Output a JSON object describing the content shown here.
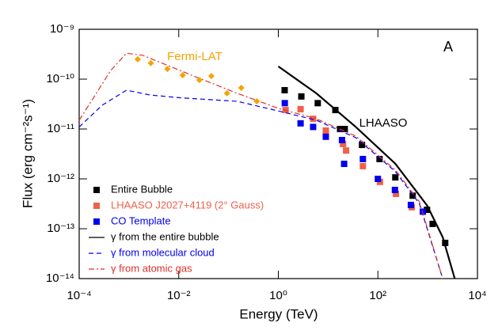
{
  "chart_data": {
    "type": "scatter",
    "x_label": "Energy (TeV)",
    "y_label": "Flux (erg cm⁻²s⁻¹)",
    "log_x": true,
    "log_y": true,
    "xlim": [
      0.0001,
      10000
    ],
    "ylim": [
      1e-14,
      1e-09
    ],
    "xticks": [
      {
        "value": 0.0001,
        "label": "10⁻⁴"
      },
      {
        "value": 0.01,
        "label": "10⁻²"
      },
      {
        "value": 1,
        "label": "10⁰"
      },
      {
        "value": 100,
        "label": "10²"
      },
      {
        "value": 10000,
        "label": "10⁴"
      }
    ],
    "yticks": [
      {
        "value": 1e-14,
        "label": "10⁻¹⁴"
      },
      {
        "value": 1e-13,
        "label": "10⁻¹³"
      },
      {
        "value": 1e-12,
        "label": "10⁻¹²"
      },
      {
        "value": 1e-11,
        "label": "10⁻¹¹"
      },
      {
        "value": 1e-10,
        "label": "10⁻¹⁰"
      },
      {
        "value": 1e-09,
        "label": "10⁻⁹"
      }
    ],
    "annotations": [
      {
        "text": "Fermi-LAT",
        "color": "#f5a300"
      },
      {
        "text": "LHAASO",
        "color": "#000000"
      },
      {
        "text": "A",
        "color": "#000000"
      }
    ],
    "series": [
      {
        "name": "Entire Bubble",
        "color": "#000000",
        "marker": "square",
        "x": [
          1.34,
          2.9,
          6.2,
          14,
          17.4,
          21.6,
          48,
          108,
          224,
          500,
          970,
          1260,
          2250
        ],
        "values": [
          6e-11,
          4.5e-11,
          3.3e-11,
          2.4e-11,
          1e-11,
          1e-11,
          4.8e-12,
          2.5e-12,
          1.07e-12,
          4.6e-13,
          2.4e-13,
          1.25e-13,
          5.2e-14
        ]
      },
      {
        "name": "LHAASO J2027+4119 (2° Gauss)",
        "color": "#f0604a",
        "marker": "square",
        "x": [
          1.4,
          2.8,
          5,
          9,
          20,
          23,
          50,
          110,
          230,
          480
        ],
        "values": [
          2.4e-11,
          2.5e-11,
          1.6e-11,
          9.3e-12,
          5e-12,
          3.7e-12,
          1.8e-12,
          8.7e-13,
          5e-13,
          2.7e-13
        ]
      },
      {
        "name": "CO Template",
        "color": "#0000ee",
        "marker": "square",
        "x": [
          1.35,
          2.8,
          5,
          9,
          19,
          21,
          50,
          100,
          220,
          460,
          800
        ],
        "values": [
          3.3e-11,
          1.3e-11,
          1.1e-11,
          7e-12,
          6e-12,
          2e-12,
          2.5e-12,
          1e-12,
          6e-13,
          3e-13,
          2.2e-13
        ]
      },
      {
        "name": "γ from the entire bubble",
        "color": "#000000",
        "line": "solid",
        "x": [
          1,
          5.8,
          36,
          225,
          980,
          2000,
          3500
        ],
        "values": [
          1.8e-10,
          5.2e-11,
          1.1e-11,
          2e-12,
          2.9e-13,
          6.8e-14,
          1e-14
        ]
      },
      {
        "name": "γ from molecular cloud",
        "color": "#0000ee",
        "line": "dashed",
        "x": [
          0.0001,
          0.00029,
          0.00089,
          0.0027,
          0.0115,
          0.15,
          1,
          5.8,
          36,
          225,
          680,
          2000
        ],
        "values": [
          1.1e-11,
          3e-11,
          6e-11,
          4.8e-11,
          4.2e-11,
          3.6e-11,
          2.3e-11,
          1.5e-11,
          6.7e-12,
          1.4e-12,
          3.2e-13,
          1e-14
        ]
      },
      {
        "name": "γ from atomic gas",
        "color": "#e0302a",
        "line": "dashdot",
        "x": [
          0.0001,
          0.00021,
          0.00042,
          0.00089,
          0.0019,
          0.024,
          0.15,
          1,
          5.8,
          36,
          225,
          680,
          2000
        ],
        "values": [
          1.5e-11,
          4.8e-11,
          1.45e-10,
          3.3e-10,
          3e-10,
          1.07e-10,
          5.2e-11,
          2.6e-11,
          1.6e-11,
          7.2e-12,
          1.5e-12,
          3.5e-13,
          1e-14
        ]
      },
      {
        "color": "#f5a300",
        "marker": "diamond",
        "x": [
          0.0015,
          0.00275,
          0.0059,
          0.012,
          0.026,
          0.045,
          0.093,
          0.18,
          0.37
        ],
        "values": [
          2.5e-10,
          2.1e-10,
          1.6e-10,
          1.2e-10,
          9.6e-11,
          1.15e-10,
          5.2e-11,
          6.7e-11,
          3.6e-11
        ]
      }
    ]
  }
}
